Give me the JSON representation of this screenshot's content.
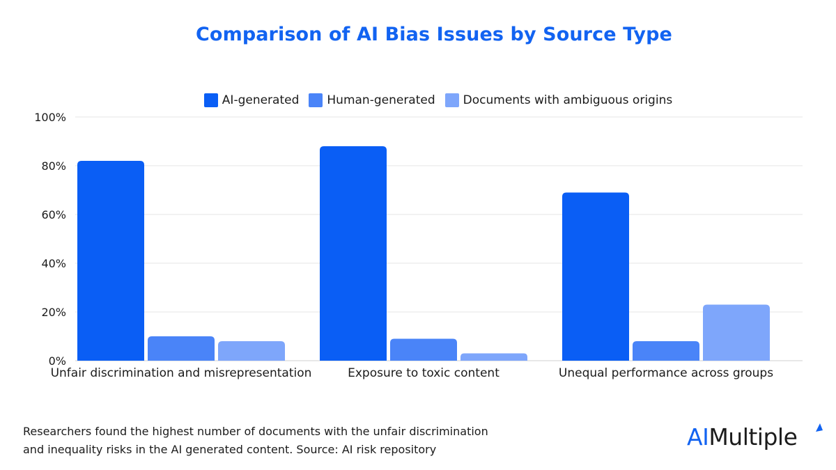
{
  "chart_data": {
    "type": "bar",
    "title": "Comparison of AI Bias Issues by Source Type",
    "xlabel": "",
    "ylabel": "",
    "categories": [
      "Unfair discrimination and misrepresentation",
      "Exposure to toxic content",
      "Unequal performance across groups"
    ],
    "series": [
      {
        "name": "AI-generated",
        "color": "#0a5ef5",
        "values": [
          82,
          88,
          69
        ]
      },
      {
        "name": "Human-generated",
        "color": "#4a84f8",
        "values": [
          10,
          9,
          8
        ]
      },
      {
        "name": "Documents with ambiguous origins",
        "color": "#7ea6fb",
        "values": [
          8,
          3,
          23
        ]
      }
    ],
    "ylim": [
      0,
      100
    ],
    "yticks": [
      0,
      20,
      40,
      60,
      80,
      100
    ],
    "ytick_labels": [
      "0%",
      "20%",
      "40%",
      "60%",
      "80%",
      "100%"
    ],
    "grid": true,
    "legend_position": "top"
  },
  "caption": {
    "line1": "Researchers found the highest number of documents with the unfair discrimination",
    "line2": "and inequality risks in the AI generated content. Source: AI risk repository"
  },
  "logo": {
    "part1": "AI",
    "part2": "Multiple"
  },
  "colors": {
    "title": "#1263f1",
    "grid": "#e6e6e6",
    "axis": "#cfcfcf"
  }
}
